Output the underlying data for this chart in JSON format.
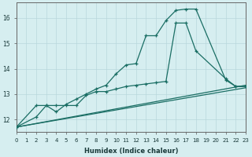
{
  "xlabel": "Humidex (Indice chaleur)",
  "background_color": "#d6eef0",
  "grid_color": "#b8d8dc",
  "line_color": "#1a6e64",
  "xmin": 0,
  "xmax": 23,
  "ymin": 11.5,
  "ymax": 16.6,
  "yticks": [
    12,
    13,
    14,
    15,
    16
  ],
  "xticks": [
    0,
    1,
    2,
    3,
    4,
    5,
    6,
    7,
    8,
    9,
    10,
    11,
    12,
    13,
    14,
    15,
    16,
    17,
    18,
    19,
    20,
    21,
    22,
    23
  ],
  "series1_x": [
    0,
    2,
    3,
    4,
    5,
    6,
    7,
    8,
    9,
    10,
    11,
    12,
    13,
    14,
    15,
    16,
    17,
    18,
    21,
    22,
    23
  ],
  "series1_y": [
    11.7,
    12.1,
    12.55,
    12.3,
    12.6,
    12.8,
    13.0,
    13.2,
    13.35,
    13.8,
    14.15,
    14.2,
    15.3,
    15.3,
    15.9,
    16.3,
    16.35,
    16.35,
    13.55,
    13.3,
    13.3
  ],
  "series2_x": [
    0,
    2,
    3,
    4,
    5,
    6,
    7,
    8,
    9,
    10,
    11,
    12,
    13,
    14,
    15,
    16,
    17,
    18,
    21,
    22,
    23
  ],
  "series2_y": [
    11.7,
    12.55,
    12.55,
    12.55,
    12.55,
    12.55,
    12.95,
    13.1,
    13.1,
    13.2,
    13.3,
    13.35,
    13.4,
    13.45,
    13.5,
    15.8,
    15.8,
    14.7,
    13.6,
    13.3,
    13.3
  ],
  "line1_x": [
    0,
    23
  ],
  "line1_y": [
    11.7,
    13.35
  ],
  "line2_x": [
    0,
    23
  ],
  "line2_y": [
    11.7,
    13.25
  ]
}
